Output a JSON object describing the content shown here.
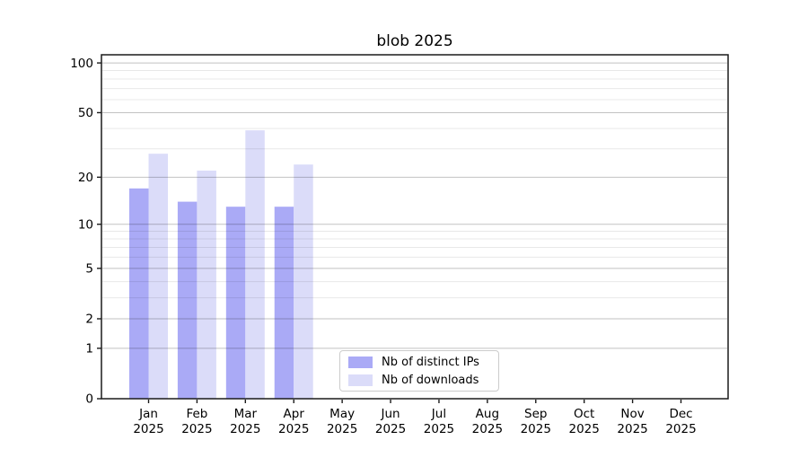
{
  "chart_data": {
    "type": "bar",
    "title": "blob 2025",
    "categories": [
      "Jan",
      "Feb",
      "Mar",
      "Apr",
      "May",
      "Jun",
      "Jul",
      "Aug",
      "Sep",
      "Oct",
      "Nov",
      "Dec"
    ],
    "year_label": "2025",
    "series": [
      {
        "name": "Nb of distinct IPs",
        "color": "#aaaaf6",
        "values": [
          17,
          14,
          13,
          13,
          0,
          0,
          0,
          0,
          0,
          0,
          0,
          0
        ]
      },
      {
        "name": "Nb of downloads",
        "color": "#dbdcf9",
        "values": [
          28,
          22,
          39,
          24,
          0,
          0,
          0,
          0,
          0,
          0,
          0,
          0
        ]
      }
    ],
    "y_scale": "log1p",
    "y_axis": {
      "major_ticks": [
        0,
        1,
        2,
        5,
        10,
        20,
        50,
        100
      ],
      "minor_gridlines": [
        3,
        4,
        6,
        7,
        8,
        9,
        30,
        40,
        60,
        70,
        80,
        90
      ],
      "max": 112
    },
    "grid": true,
    "legend": {
      "position": "lower center"
    }
  },
  "colors": {
    "background": "#ffffff",
    "spine": "#1a1a1a",
    "tick_label": "#000000",
    "grid_major": "rgba(0,0,0,0.24)",
    "grid_minor": "rgba(0,0,0,0.09)"
  }
}
